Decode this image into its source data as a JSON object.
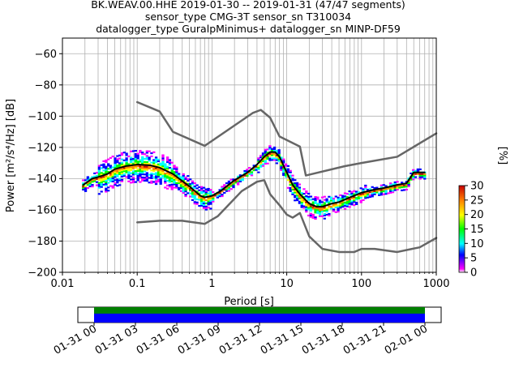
{
  "figure": {
    "title_lines": [
      "BK.WEAV.00.HHE   2019-01-30 -- 2019-01-31  (47/47 segments)",
      "sensor_type CMG-3T sensor_sn T310034",
      "datalogger_type GuralpMinimus+ datalogger_sn MINP-DF59"
    ]
  },
  "chart_data": [
    {
      "type": "heatmap",
      "title": "BK.WEAV.00.HHE   2019-01-30 -- 2019-01-31  (47/47 segments)",
      "xlabel": "Period [s]",
      "ylabel": "Power [m²/s⁴/Hz] [dB]",
      "x_scale": "log",
      "xlim": [
        0.01,
        1000
      ],
      "ylim": [
        -200,
        -50
      ],
      "x_ticks": [
        0.01,
        0.1,
        1,
        10,
        100,
        1000
      ],
      "x_tick_labels": [
        "0.01",
        "0.1",
        "1",
        "10",
        "100",
        "1000"
      ],
      "y_ticks": [
        -200,
        -180,
        -160,
        -140,
        -120,
        -100,
        -80,
        -60
      ],
      "y_tick_labels": [
        "−200",
        "−180",
        "−160",
        "−140",
        "−120",
        "−100",
        "−80",
        "−60"
      ],
      "grid": true,
      "colorbar": {
        "label": "[%]",
        "range": [
          0,
          30
        ],
        "ticks": [
          0,
          5,
          10,
          15,
          20,
          25,
          30
        ],
        "tick_labels": [
          "0",
          "5",
          "10",
          "15",
          "20",
          "25",
          "30"
        ]
      },
      "series": [
        {
          "style": "mean",
          "color": "#000000",
          "x": [
            0.019,
            0.025,
            0.03,
            0.04,
            0.05,
            0.07,
            0.1,
            0.15,
            0.2,
            0.3,
            0.5,
            0.7,
            0.8,
            1.0,
            1.3,
            2,
            3,
            4,
            5,
            6,
            7,
            8,
            10,
            12,
            15,
            20,
            25,
            30,
            40,
            50,
            70,
            100,
            150,
            200,
            300,
            400,
            500,
            700
          ],
          "y": [
            -144,
            -140,
            -139,
            -137,
            -134,
            -132,
            -131,
            -131.5,
            -133,
            -137,
            -145,
            -151,
            -152,
            -151,
            -148,
            -141,
            -136,
            -131,
            -126,
            -123,
            -123,
            -126,
            -136,
            -144,
            -150,
            -156,
            -158,
            -158,
            -156,
            -155,
            -152,
            -149,
            -147,
            -146,
            -144,
            -143,
            -136,
            -136
          ]
        },
        {
          "style": "model",
          "color": "#666666",
          "x": [
            0.1,
            0.2,
            0.3,
            0.8,
            3.5,
            4.5,
            6,
            8,
            15,
            18,
            60,
            100,
            300,
            1000
          ],
          "y": [
            -91,
            -97,
            -110,
            -119,
            -98,
            -96,
            -101,
            -113,
            -119.5,
            -138,
            -132,
            -130,
            -126,
            -111
          ]
        },
        {
          "style": "model",
          "color": "#666666",
          "x": [
            0.1,
            0.2,
            0.4,
            0.8,
            1.2,
            2.5,
            4,
            5,
            6,
            8,
            10,
            12,
            15,
            20,
            30,
            50,
            80,
            100,
            150,
            300,
            600,
            1000
          ],
          "y": [
            -168,
            -167,
            -167,
            -169,
            -164,
            -148,
            -142,
            -141,
            -150,
            -157,
            -163,
            -165,
            -162,
            -177,
            -185,
            -187,
            -187,
            -185,
            -185,
            -187,
            -184,
            -178
          ]
        }
      ]
    },
    {
      "type": "bar",
      "xlabel": "",
      "time_ticks": [
        "01-31 00",
        "01-31 03",
        "01-31 06",
        "01-31 09",
        "01-31 12",
        "01-31 15",
        "01-31 18",
        "01-31 21",
        "02-01 00"
      ],
      "coverage": [
        {
          "color": "#008000",
          "start": "01-31 00",
          "end": "02-01 00"
        },
        {
          "color": "#0000ff",
          "start": "01-31 00",
          "end": "02-01 00"
        }
      ]
    }
  ]
}
